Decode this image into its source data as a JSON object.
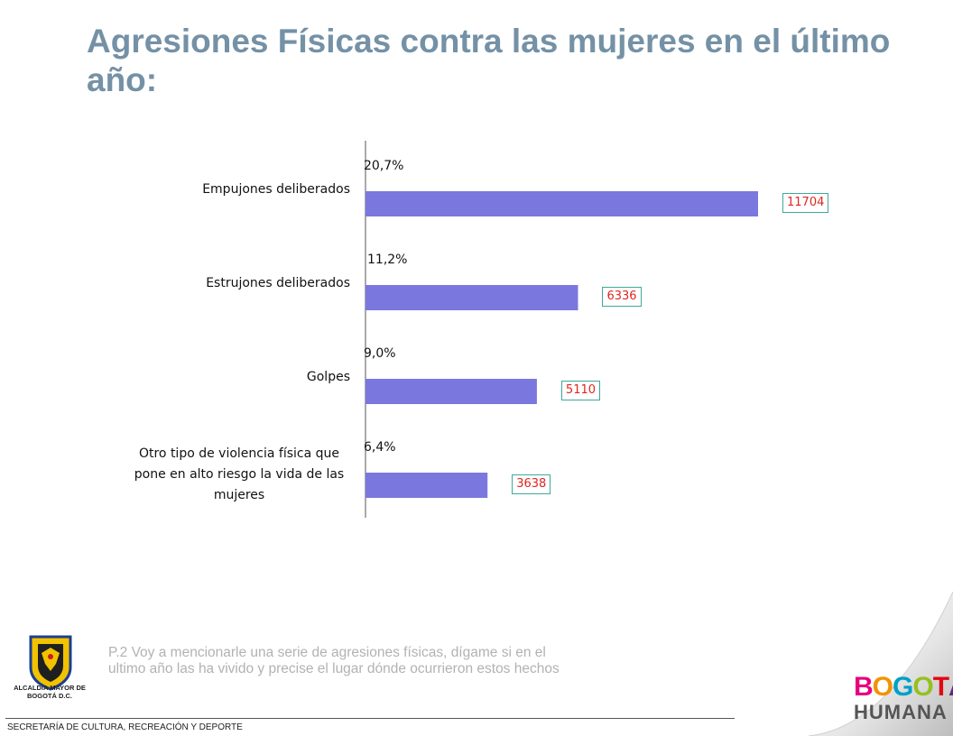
{
  "slide": {
    "title": "Agresiones Físicas contra las mujeres en el último año:",
    "footnote": "P.2 Voy a mencionarle una serie de agresiones físicas, dígame si en el ultimo año las ha vivido y precise el lugar dónde ocurrieron estos hechos",
    "footer": "SECRETARÍA DE CULTURA, RECREACIÓN Y DEPORTE"
  },
  "logos": {
    "left_seal_text": "ALCALDÍA MAYOR DE BOGOTÁ D.C.",
    "brand_line1": "BOGOTÁ",
    "brand_line2": "HUMANA",
    "brand_colors": [
      "#e6007e",
      "#f39200",
      "#00a0c6",
      "#95c11f",
      "#e30613",
      "#662483"
    ]
  },
  "chart_data": {
    "type": "bar",
    "orientation": "horizontal",
    "categories": [
      "Empujones deliberados",
      "Estrujones deliberados",
      "Golpes",
      "Otro tipo de violencia física que pone en alto riesgo la vida de las mujeres"
    ],
    "values": [
      11704,
      6336,
      5110,
      3638
    ],
    "percent_labels": [
      "20,7%",
      "11,2%",
      "9,0%",
      "6,4%"
    ],
    "value_labels": [
      "11704",
      "6336",
      "5110",
      "3638"
    ],
    "xlim": [
      0,
      11704
    ],
    "grid": false,
    "bar_color": "#7a78de",
    "value_label_color": "#e0261e",
    "value_label_border": "#3fa99a"
  }
}
